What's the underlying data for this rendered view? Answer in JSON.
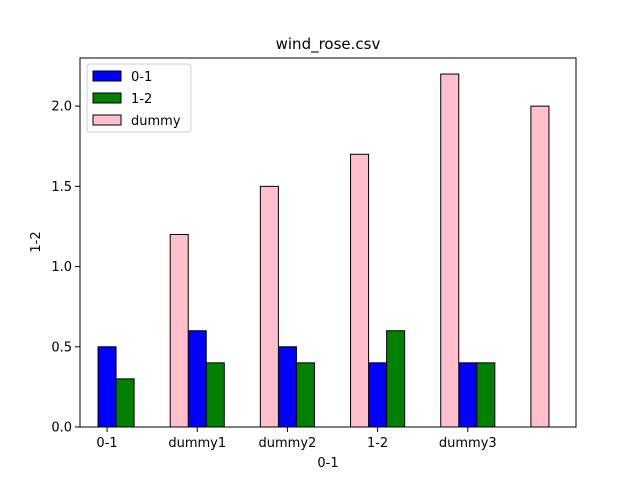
{
  "chart_data": {
    "type": "bar",
    "title": "wind_rose.csv",
    "xlabel": "0-1",
    "ylabel": "1-2",
    "ylim": [
      0,
      2.3
    ],
    "yticks": [
      0.0,
      0.5,
      1.0,
      1.5,
      2.0
    ],
    "ytick_labels": [
      "0.0",
      "0.5",
      "1.0",
      "1.5",
      "2.0"
    ],
    "x_tick_labels": [
      "0-1",
      "dummy1",
      "dummy2",
      "1-2",
      "dummy3"
    ],
    "grid": false,
    "legend_position": "top-left",
    "series": [
      {
        "name": "0-1",
        "color": "#0000ff",
        "points": [
          {
            "x": 0.0,
            "y": 0.5
          },
          {
            "x": 1.0,
            "y": 0.6
          },
          {
            "x": 2.0,
            "y": 0.5
          },
          {
            "x": 3.0,
            "y": 0.4
          },
          {
            "x": 4.0,
            "y": 0.4
          }
        ]
      },
      {
        "name": "1-2",
        "color": "#008000",
        "points": [
          {
            "x": 0.2,
            "y": 0.3
          },
          {
            "x": 1.2,
            "y": 0.4
          },
          {
            "x": 2.2,
            "y": 0.4
          },
          {
            "x": 3.2,
            "y": 0.6
          },
          {
            "x": 4.2,
            "y": 0.4
          }
        ]
      },
      {
        "name": "dummy",
        "color": "#ffc0cb",
        "points": [
          {
            "x": 0.8,
            "y": 1.2
          },
          {
            "x": 1.8,
            "y": 1.5
          },
          {
            "x": 2.8,
            "y": 1.7
          },
          {
            "x": 3.8,
            "y": 2.2
          },
          {
            "x": 4.8,
            "y": 2.0
          }
        ]
      }
    ]
  }
}
